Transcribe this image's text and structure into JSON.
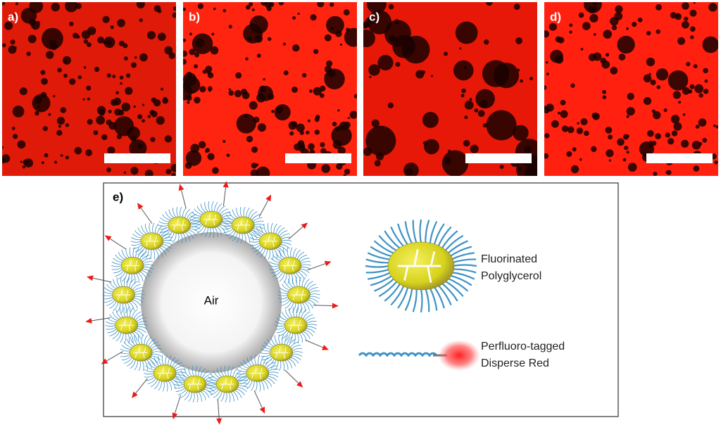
{
  "panels": [
    {
      "label": "a)"
    },
    {
      "label": "b)"
    },
    {
      "label": "c)"
    },
    {
      "label": "d)"
    }
  ],
  "diagram": {
    "label": "e)",
    "center_label": "Air",
    "legend": [
      {
        "lines": [
          "Fluorinated",
          "Polyglycerol"
        ]
      },
      {
        "lines": [
          "Perfluoro-tagged",
          "Disperse Red"
        ]
      }
    ]
  }
}
